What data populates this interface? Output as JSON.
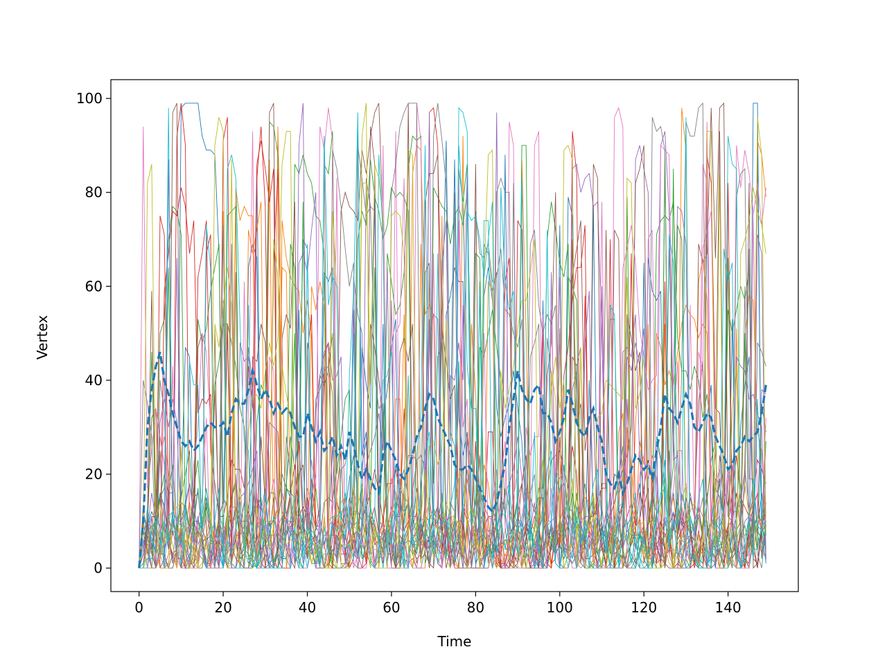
{
  "chart_data": {
    "type": "line",
    "title": "",
    "xlabel": "Time",
    "ylabel": "Vertex",
    "xlim": [
      -6.7,
      156.7
    ],
    "ylim": [
      -5,
      104
    ],
    "x_ticks": [
      0,
      20,
      40,
      60,
      80,
      100,
      120,
      140
    ],
    "y_ticks": [
      0,
      20,
      40,
      60,
      80,
      100
    ],
    "x_tick_labels": [
      "0",
      "20",
      "40",
      "60",
      "80",
      "100",
      "120",
      "140"
    ],
    "y_tick_labels": [
      "0",
      "20",
      "40",
      "60",
      "80",
      "100"
    ],
    "grid": false,
    "legend": "none",
    "background_series": {
      "count": 10,
      "length": 150,
      "value_range": [
        0,
        99
      ],
      "colors": [
        "#1f77b4",
        "#ff7f0e",
        "#2ca02c",
        "#d62728",
        "#9467bd",
        "#8c564b",
        "#e377c2",
        "#7f7f7f",
        "#bcbd22",
        "#17becf"
      ],
      "note": "dense random-walk vertex trajectories"
    },
    "mean_series": {
      "style": "dashed",
      "color": "#1f77b4",
      "x": [
        0,
        1,
        2,
        3,
        4,
        5,
        6,
        7,
        8,
        9,
        10,
        11,
        12,
        13,
        14,
        15,
        16,
        17,
        18,
        19,
        20,
        21,
        22,
        23,
        24,
        25,
        26,
        27,
        28,
        29,
        30,
        31,
        32,
        33,
        34,
        35,
        36,
        37,
        38,
        39,
        40,
        41,
        42,
        43,
        44,
        45,
        46,
        47,
        48,
        49,
        50,
        51,
        52,
        53,
        54,
        55,
        56,
        57,
        58,
        59,
        60,
        61,
        62,
        63,
        64,
        65,
        66,
        67,
        68,
        69,
        70,
        71,
        72,
        73,
        74,
        75,
        76,
        77,
        78,
        79,
        80,
        81,
        82,
        83,
        84,
        85,
        86,
        87,
        88,
        89,
        90,
        91,
        92,
        93,
        94,
        95,
        96,
        97,
        98,
        99,
        100,
        101,
        102,
        103,
        104,
        105,
        106,
        107,
        108,
        109,
        110,
        111,
        112,
        113,
        114,
        115,
        116,
        117,
        118,
        119,
        120,
        121,
        122,
        123,
        124,
        125,
        126,
        127,
        128,
        129,
        130,
        131,
        132,
        133,
        134,
        135,
        136,
        137,
        138,
        139,
        140,
        141,
        142,
        143,
        144,
        145,
        146,
        147,
        148,
        149
      ],
      "values": [
        0,
        10,
        30,
        38,
        43,
        46,
        40,
        37,
        33,
        30,
        27,
        26,
        27,
        25,
        26,
        28,
        30,
        31,
        30,
        30,
        31,
        28,
        33,
        36,
        35,
        35,
        38,
        42,
        39,
        36,
        38,
        36,
        33,
        35,
        33,
        34,
        33,
        30,
        28,
        28,
        33,
        30,
        27,
        29,
        25,
        26,
        28,
        24,
        26,
        23,
        29,
        26,
        22,
        19,
        21,
        19,
        17,
        16,
        24,
        27,
        25,
        23,
        20,
        19,
        21,
        24,
        28,
        30,
        34,
        37,
        36,
        32,
        30,
        28,
        26,
        22,
        21,
        21,
        22,
        21,
        19,
        17,
        15,
        13,
        12,
        14,
        18,
        22,
        30,
        36,
        42,
        38,
        36,
        35,
        38,
        39,
        33,
        33,
        31,
        27,
        29,
        32,
        38,
        35,
        31,
        29,
        28,
        32,
        34,
        30,
        27,
        20,
        18,
        17,
        20,
        16,
        18,
        21,
        24,
        23,
        21,
        22,
        19,
        25,
        30,
        37,
        34,
        33,
        31,
        34,
        37,
        35,
        30,
        29,
        31,
        33,
        32,
        28,
        26,
        24,
        21,
        22,
        25,
        26,
        28,
        27,
        28,
        29,
        33,
        39
      ],
      "values_note": "shape of thick dashed mean line, approximate"
    }
  }
}
